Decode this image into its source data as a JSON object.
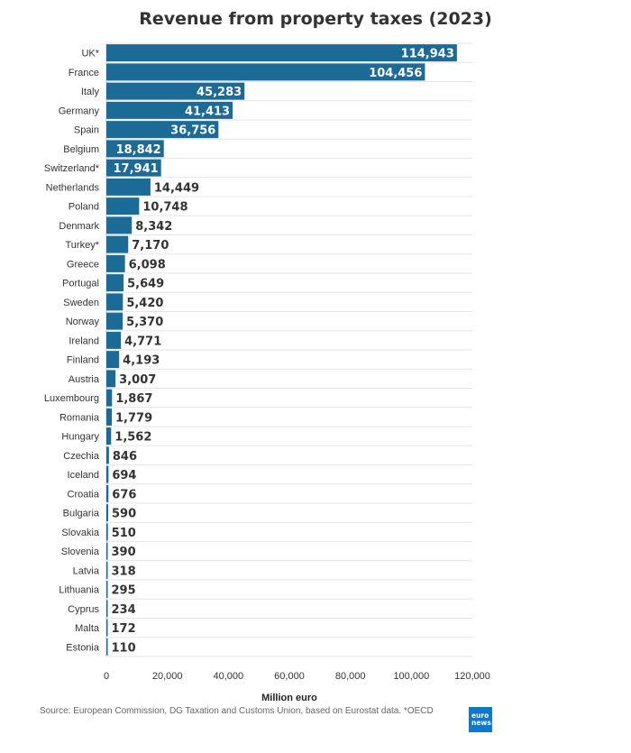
{
  "chart_data": {
    "type": "bar",
    "orientation": "horizontal",
    "title": "Revenue from property taxes (2023)",
    "xlabel": "Million euro",
    "xlim": [
      0,
      120000
    ],
    "xticks": [
      "0",
      "20,000",
      "40,000",
      "60,000",
      "80,000",
      "100,000",
      "120,000"
    ],
    "grid": true,
    "bar_color": "#1c6a96",
    "categories": [
      "UK*",
      "France",
      "Italy",
      "Germany",
      "Spain",
      "Belgium",
      "Switzerland*",
      "Netherlands",
      "Poland",
      "Denmark",
      "Turkey*",
      "Greece",
      "Portugal",
      "Sweden",
      "Norway",
      "Ireland",
      "Finland",
      "Austria",
      "Luxembourg",
      "Romania",
      "Hungary",
      "Czechia",
      "Iceland",
      "Croatia",
      "Bulgaria",
      "Slovakia",
      "Slovenia",
      "Latvia",
      "Lithuania",
      "Cyprus",
      "Malta",
      "Estonia"
    ],
    "values": [
      114943,
      104456,
      45283,
      41413,
      36756,
      18842,
      17941,
      14449,
      10748,
      8342,
      7170,
      6098,
      5649,
      5420,
      5370,
      4771,
      4193,
      3007,
      1867,
      1779,
      1562,
      846,
      694,
      676,
      590,
      510,
      390,
      318,
      295,
      234,
      172,
      110
    ],
    "value_labels": [
      "114,943",
      "104,456",
      "45,283",
      "41,413",
      "36,756",
      "18,842",
      "17,941",
      "14,449",
      "10,748",
      "8,342",
      "7,170",
      "6,098",
      "5,649",
      "5,420",
      "5,370",
      "4,771",
      "4,193",
      "3,007",
      "1,867",
      "1,779",
      "1,562",
      "846",
      "694",
      "676",
      "590",
      "510",
      "390",
      "318",
      "295",
      "234",
      "172",
      "110"
    ]
  },
  "source": "Source: European Commission, DG Taxation and Customs Union, based on Eurostat data. *OECD",
  "logo": {
    "line1": "euro",
    "line2": "news."
  }
}
